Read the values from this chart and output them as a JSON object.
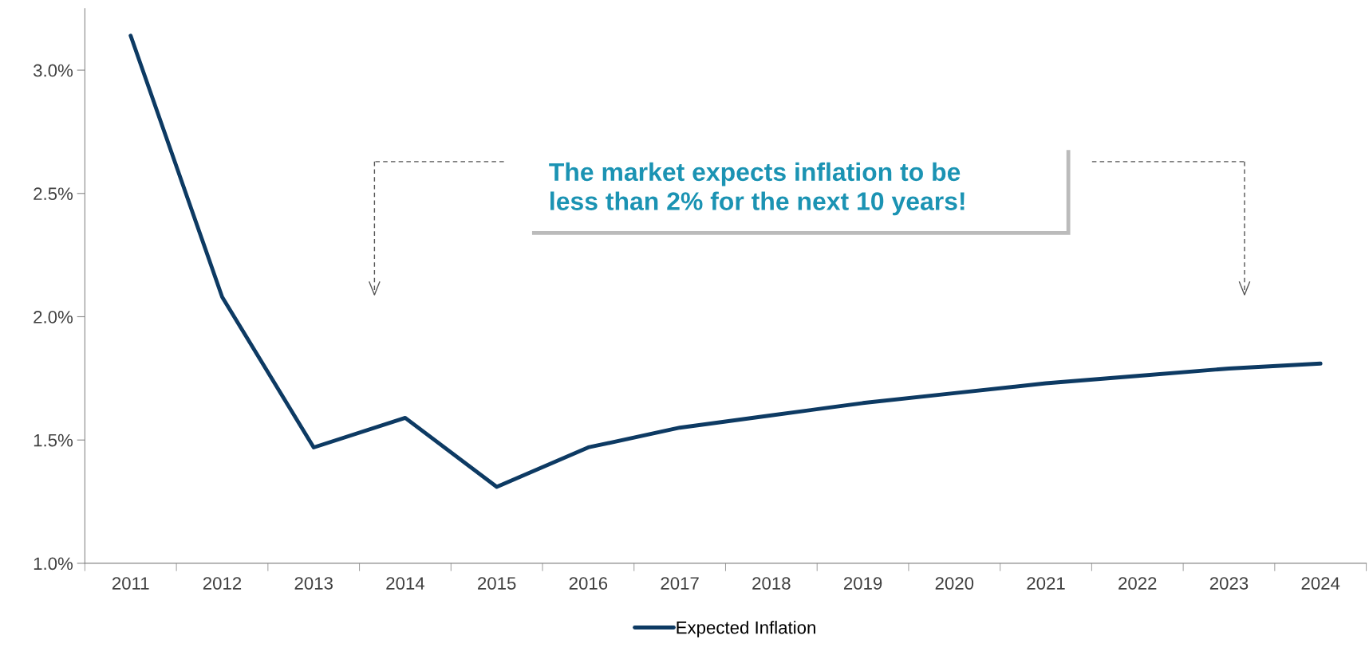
{
  "chart_data": {
    "type": "line",
    "categories": [
      "2011",
      "2012",
      "2013",
      "2014",
      "2015",
      "2016",
      "2017",
      "2018",
      "2019",
      "2020",
      "2021",
      "2022",
      "2023",
      "2024"
    ],
    "series": [
      {
        "name": "Expected Inflation",
        "color": "#0d3a63",
        "values": [
          3.14,
          2.08,
          1.47,
          1.59,
          1.31,
          1.47,
          1.55,
          1.6,
          1.65,
          1.69,
          1.73,
          1.76,
          1.79,
          1.81
        ]
      }
    ],
    "ylim": [
      1.0,
      3.25
    ],
    "yticks": [
      {
        "value": 1.0,
        "label": "1.0%"
      },
      {
        "value": 1.5,
        "label": "1.5%"
      },
      {
        "value": 2.0,
        "label": "2.0%"
      },
      {
        "value": 2.5,
        "label": "2.5%"
      },
      {
        "value": 3.0,
        "label": "3.0%"
      }
    ],
    "annotations": [
      "The market expects inflation to be\nless than 2% for the next 10 years!"
    ],
    "grid": false,
    "legend": "bottom",
    "marker": "none",
    "line_style": "solid"
  }
}
